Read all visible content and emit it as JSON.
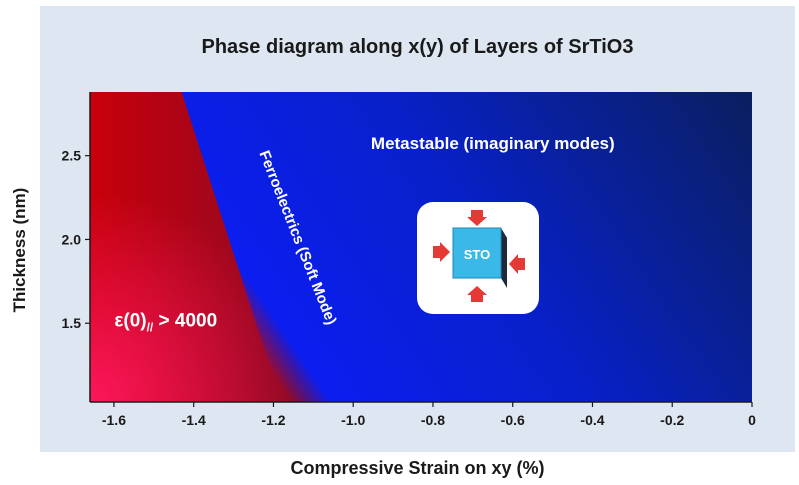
{
  "chart_data": {
    "type": "heatmap",
    "title": "Phase diagram along x(y) of Layers of SrTiO3",
    "xlabel": "Compressive  Strain on xy (%)",
    "ylabel": "Thickness (nm)",
    "xlim": [
      -1.66,
      0
    ],
    "ylim": [
      1.03,
      2.88
    ],
    "x_ticks": [
      -1.6,
      -1.4,
      -1.2,
      -1.0,
      -0.8,
      -0.6,
      -0.4,
      -0.2,
      0
    ],
    "x_tick_labels": [
      "-1.6",
      "-1.4",
      "-1.2",
      "-1.0",
      "-0.8",
      "-0.6",
      "-0.4",
      "-0.2",
      "0"
    ],
    "y_ticks": [
      1.5,
      2.0,
      2.5
    ],
    "y_tick_labels": [
      "1.5",
      "2.0",
      "2.5"
    ],
    "regions": [
      {
        "label_main": "ε(0)",
        "label_sub": "//",
        "label_tail": " > 4000",
        "x": -1.47,
        "y": 1.48,
        "color": "#e0143c"
      },
      {
        "label": "Ferroelectrics (Soft Mode)",
        "x": -1.15,
        "y": 2.0,
        "color": "#7a1070"
      },
      {
        "label": "Metastable (imaginary modes)",
        "x": -0.65,
        "y": 2.54,
        "color": "#1a1ad8"
      }
    ],
    "boundary": {
      "x_at_bottom": -1.08,
      "x_at_top": -1.33
    },
    "colors": {
      "ferro_hot": "#ff1860",
      "ferro": "#cc0000",
      "meta": "#0b1ef0",
      "meta_dark": "#0a1f5e"
    }
  },
  "inset": {
    "label": "STO",
    "icon": "strained-crystal-icon",
    "colors": {
      "block": "#3ab8e8",
      "arrow": "#e53935"
    }
  }
}
